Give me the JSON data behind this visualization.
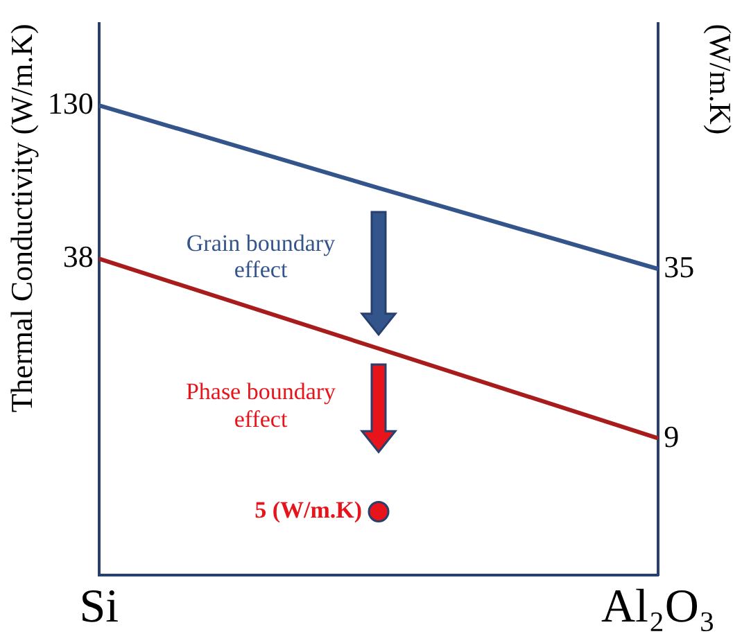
{
  "chart_data": {
    "type": "line",
    "ylabel": "Thermal Conductivity (W/m.K)",
    "y2label": "(W/m.K)",
    "categories": [
      "Si",
      null,
      "Al₂O₃"
    ],
    "series": [
      {
        "color": "#34558b",
        "values": [
          130,
          67,
          35
        ],
        "marker": "none"
      },
      {
        "color": "#a81c1c",
        "values": [
          38,
          18.5,
          9
        ],
        "marker": "none"
      },
      {
        "type": "scatter",
        "color": "#e8141c",
        "values": [
          null,
          5,
          null
        ],
        "value_labels": [
          null,
          "5 (W/m.K)",
          null
        ],
        "marker": "circle"
      }
    ],
    "ylim": [
      3,
      250
    ],
    "yticks": [
      38,
      130
    ],
    "y2lim": [
      -12,
      72.7
    ],
    "y2ticks": [
      9,
      35
    ],
    "log": true,
    "annotations": [
      "Grain boundary effect",
      "Phase boundary effect"
    ],
    "legend": false
  }
}
